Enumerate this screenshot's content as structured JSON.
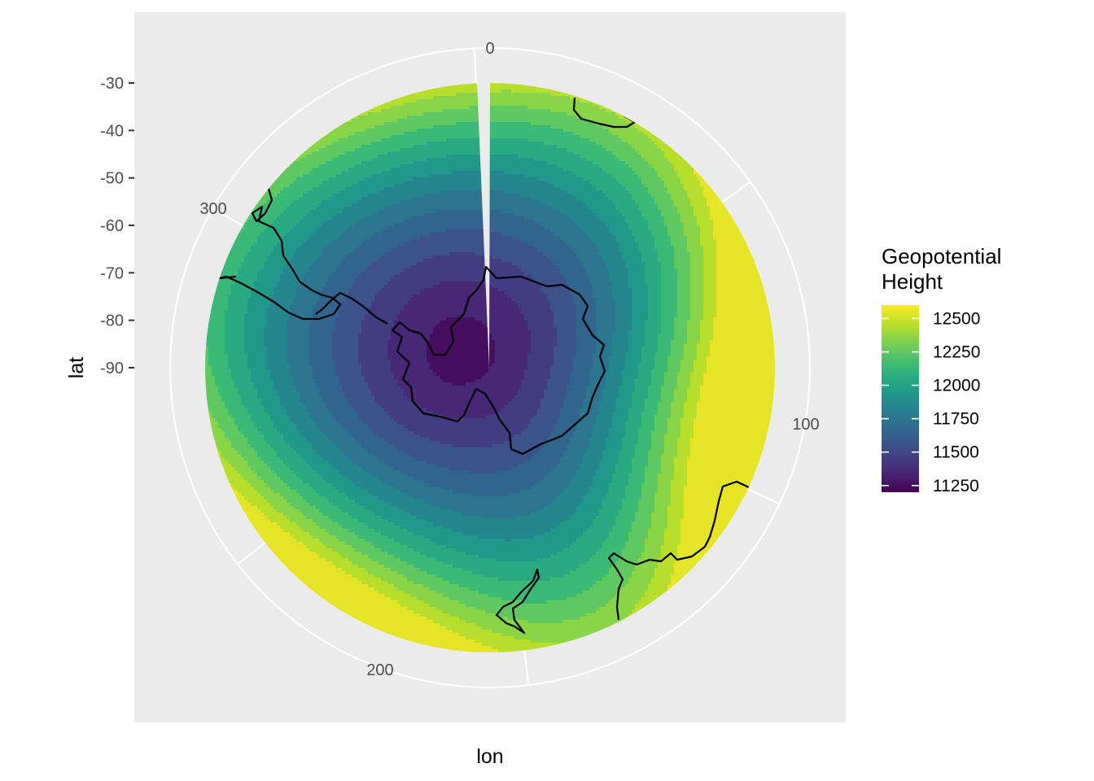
{
  "chart_data": {
    "type": "heatmap",
    "projection": "polar (south pole, orthographic-like)",
    "xlabel": "lon",
    "ylabel": "lat",
    "lon_ticks": [
      "0",
      "100",
      "200",
      "300"
    ],
    "lat_ticks": [
      "-30",
      "-40",
      "-50",
      "-60",
      "-70",
      "-80",
      "-90"
    ],
    "lat_range": [
      -90,
      -30
    ],
    "lon_range": [
      0,
      360
    ],
    "legend": {
      "title_lines": [
        "Geopotential",
        "Height"
      ],
      "labels": [
        "12500",
        "12250",
        "12000",
        "11750",
        "11500",
        "11250"
      ],
      "values": [
        12500,
        12250,
        12000,
        11750,
        11500,
        11250
      ],
      "colorscale": "viridis",
      "range": [
        11200,
        12600
      ],
      "placement": "right"
    },
    "contour_bins": [
      11250,
      11350,
      11450,
      11550,
      11650,
      11750,
      11850,
      11950,
      12050,
      12150,
      12250,
      12350,
      12450,
      12550
    ],
    "field_summary": {
      "minimum_near_pole": 11250,
      "maximum_near_lat_-30": 12500,
      "high_region": "lon ~100-160 at lat -30 to -40"
    },
    "grid": true,
    "background_color": "#ebebeb",
    "coastlines": true
  }
}
